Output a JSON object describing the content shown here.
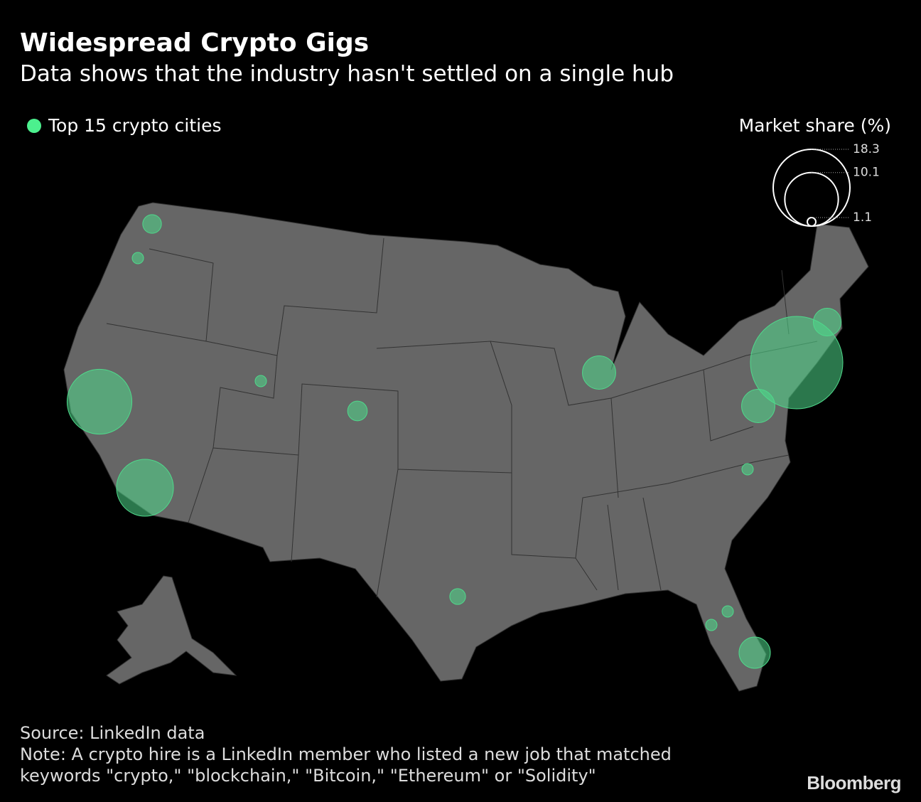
{
  "header": {
    "title": "Widespread Crypto Gigs",
    "subtitle": "Data shows that the industry hasn't settled on a single hub"
  },
  "legend": {
    "label": "Top 15 crypto cities",
    "color": "#4cf08e"
  },
  "size_legend": {
    "title": "Market share (%)",
    "values": [
      18.3,
      10.1,
      1.1
    ]
  },
  "bubbles": {
    "color": "#4fd98b",
    "values": [
      18.3,
      10.1,
      8.2,
      2.9,
      3.7,
      3.7,
      3.4,
      1.8,
      1.1,
      1.9,
      1.5,
      1.1,
      1.1,
      1.1,
      1.1
    ]
  },
  "footer": {
    "source": "Source: LinkedIn data",
    "note": [
      "Note: A crypto hire is a LinkedIn member who listed a new job that matched",
      "keywords \"crypto,\" \"blockchain,\" \"Bitcoin,\" \"Ethereum\" or \"Solidity\""
    ],
    "brand": "Bloomberg"
  }
}
